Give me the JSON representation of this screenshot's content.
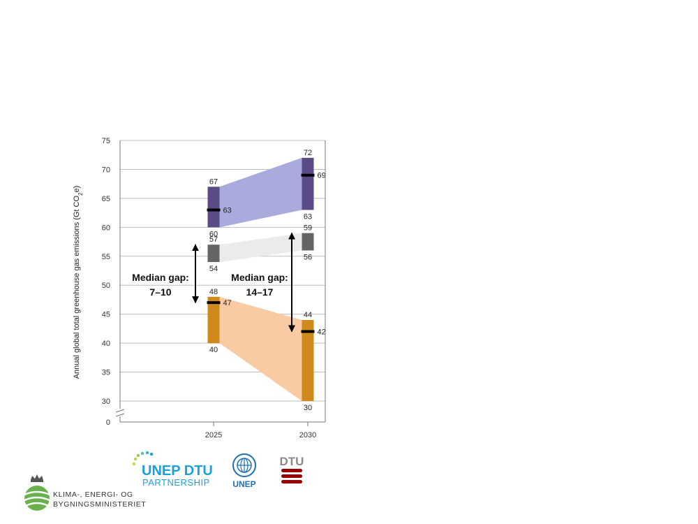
{
  "chart_data": {
    "type": "range",
    "ylabel": "Annual global total greenhouse gas emissions (Gt CO2e)",
    "ylim": [
      0,
      75
    ],
    "y_break": [
      0,
      30
    ],
    "yticks": [
      "0",
      "30",
      "35",
      "40",
      "45",
      "50",
      "55",
      "60",
      "65",
      "70",
      "75"
    ],
    "categories": [
      "2025",
      "2030"
    ],
    "grid": true,
    "series": [
      {
        "key": "top",
        "fill": "#a9abdc",
        "bar": "#5a4a85",
        "ranges": [
          {
            "low": 60,
            "high": 67,
            "median": 63,
            "low_label": "60",
            "high_label": "67",
            "median_label": "63"
          },
          {
            "low": 63,
            "high": 72,
            "median": 69,
            "low_label": "63",
            "high_label": "72",
            "median_label": "69"
          }
        ]
      },
      {
        "key": "middle",
        "fill": "#ebebeb",
        "bar": "#646464",
        "ranges": [
          {
            "low": 54,
            "high": 57,
            "median": null,
            "low_label": "54",
            "high_label": "57"
          },
          {
            "low": 56,
            "high": 59,
            "median": null,
            "low_label": "56",
            "high_label": "59"
          }
        ]
      },
      {
        "key": "bottom",
        "fill": "#f9cba4",
        "bar": "#cf8a1c",
        "ranges": [
          {
            "low": 40,
            "high": 48,
            "median": 47,
            "low_label": "40",
            "high_label": "48",
            "median_label": "47"
          },
          {
            "low": 30,
            "high": 44,
            "median": 42,
            "low_label": "30",
            "high_label": "44",
            "median_label": "42"
          }
        ]
      }
    ],
    "gaps": [
      {
        "category": "2025",
        "from": 47,
        "to": 57,
        "line1": "Median gap:",
        "line2": "7–10"
      },
      {
        "category": "2030",
        "from": 42,
        "to": 59,
        "line1": "Median gap:",
        "line2": "14–17"
      }
    ]
  },
  "logos": {
    "unep_dtu_line1": "UNEP DTU",
    "unep_dtu_line2": "PARTNERSHIP",
    "unep": "UNEP",
    "dtu": "DTU",
    "ministry_line1": "KLIMA-, ENERGI- OG",
    "ministry_line2": "BYGNINGSMINISTERIET"
  },
  "colors": {
    "unep_blue": "#1aa0dc",
    "dtu_red": "#990000",
    "ministry_green": "#6ab04c"
  }
}
